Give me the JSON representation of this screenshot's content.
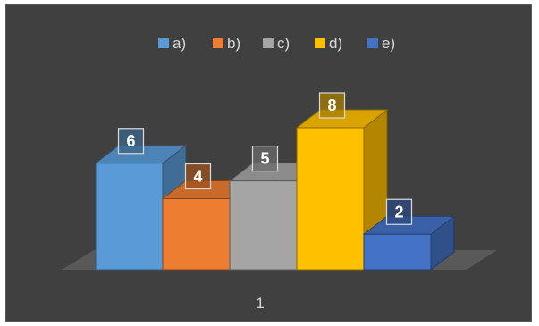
{
  "chart_data": {
    "type": "bar",
    "variant": "3d-clustered-column",
    "categories": [
      "1"
    ],
    "series": [
      {
        "name": "a)",
        "values": [
          6
        ],
        "color": "#5b9bd5"
      },
      {
        "name": "b)",
        "values": [
          4
        ],
        "color": "#ed7d31"
      },
      {
        "name": "c)",
        "values": [
          5
        ],
        "color": "#a5a5a5"
      },
      {
        "name": "d)",
        "values": [
          8
        ],
        "color": "#ffc000"
      },
      {
        "name": "e)",
        "values": [
          2
        ],
        "color": "#4472c4"
      }
    ],
    "legend_position": "top",
    "data_labels": true,
    "grid": false,
    "background": "#404040"
  }
}
